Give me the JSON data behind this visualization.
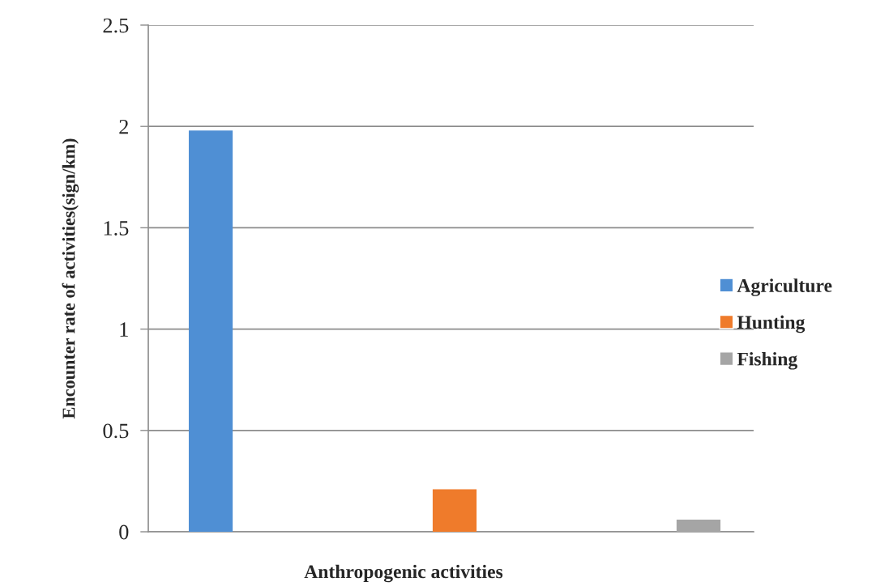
{
  "chart_data": {
    "type": "bar",
    "xlabel": "Anthropogenic activities",
    "ylabel": "Encounter rate of activities(sign/km)",
    "categories": [
      null,
      null,
      null
    ],
    "series": [
      {
        "name": "Agriculture",
        "color": "#4f8fd4",
        "values": [
          1.98,
          null,
          null
        ]
      },
      {
        "name": "Hunting",
        "color": "#ef7b2b",
        "values": [
          null,
          0.21,
          null
        ]
      },
      {
        "name": "Fishing",
        "color": "#a5a5a5",
        "values": [
          null,
          null,
          0.06
        ]
      }
    ],
    "ylim": [
      0,
      2.5
    ],
    "yticks": [
      0,
      0.5,
      1,
      1.5,
      2,
      2.5
    ],
    "grid": "y",
    "legend": "right"
  }
}
